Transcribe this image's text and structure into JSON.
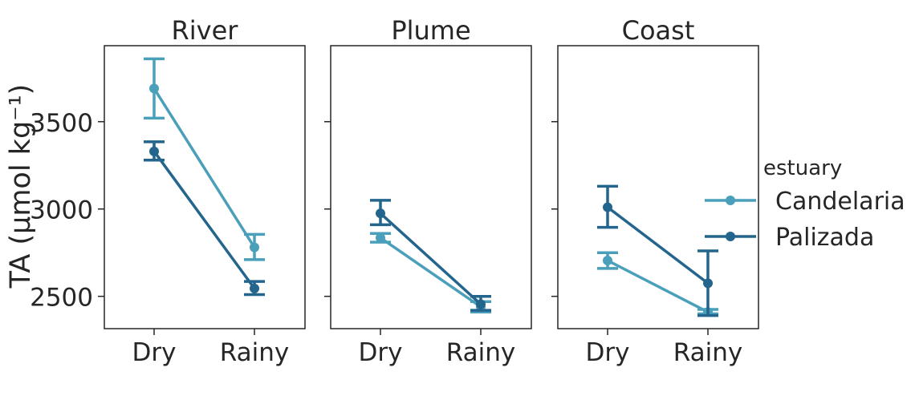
{
  "chart_data": {
    "type": "line",
    "ylabel": "TA (μmol kg⁻¹)",
    "ylim": [
      2315,
      3935
    ],
    "yticks": [
      2500,
      3000,
      3500
    ],
    "categories": [
      "Dry",
      "Rainy"
    ],
    "legend": {
      "title": "estuary",
      "placement": "right",
      "entries": [
        "Candelaria",
        "Palizada"
      ]
    },
    "colors": {
      "Candelaria": "#4a9fba",
      "Palizada": "#23658c"
    },
    "grid": false,
    "panels": [
      {
        "title": "River",
        "series": [
          {
            "name": "Candelaria",
            "values": [
              3690,
              2780
            ],
            "err_low": [
              3520,
              2710
            ],
            "err_high": [
              3860,
              2855
            ]
          },
          {
            "name": "Palizada",
            "values": [
              3330,
              2545
            ],
            "err_low": [
              3280,
              2510
            ],
            "err_high": [
              3385,
              2585
            ]
          }
        ]
      },
      {
        "title": "Plume",
        "series": [
          {
            "name": "Candelaria",
            "values": [
              2835,
              2440
            ],
            "err_low": [
              2810,
              2410
            ],
            "err_high": [
              2860,
              2470
            ]
          },
          {
            "name": "Palizada",
            "values": [
              2975,
              2455
            ],
            "err_low": [
              2910,
              2420
            ],
            "err_high": [
              3050,
              2500
            ]
          }
        ]
      },
      {
        "title": "Coast",
        "series": [
          {
            "name": "Candelaria",
            "values": [
              2705,
              2410
            ],
            "err_low": [
              2660,
              2400
            ],
            "err_high": [
              2750,
              2425
            ]
          },
          {
            "name": "Palizada",
            "values": [
              3010,
              2575
            ],
            "err_low": [
              2895,
              2390
            ],
            "err_high": [
              3130,
              2760
            ]
          }
        ]
      }
    ]
  }
}
